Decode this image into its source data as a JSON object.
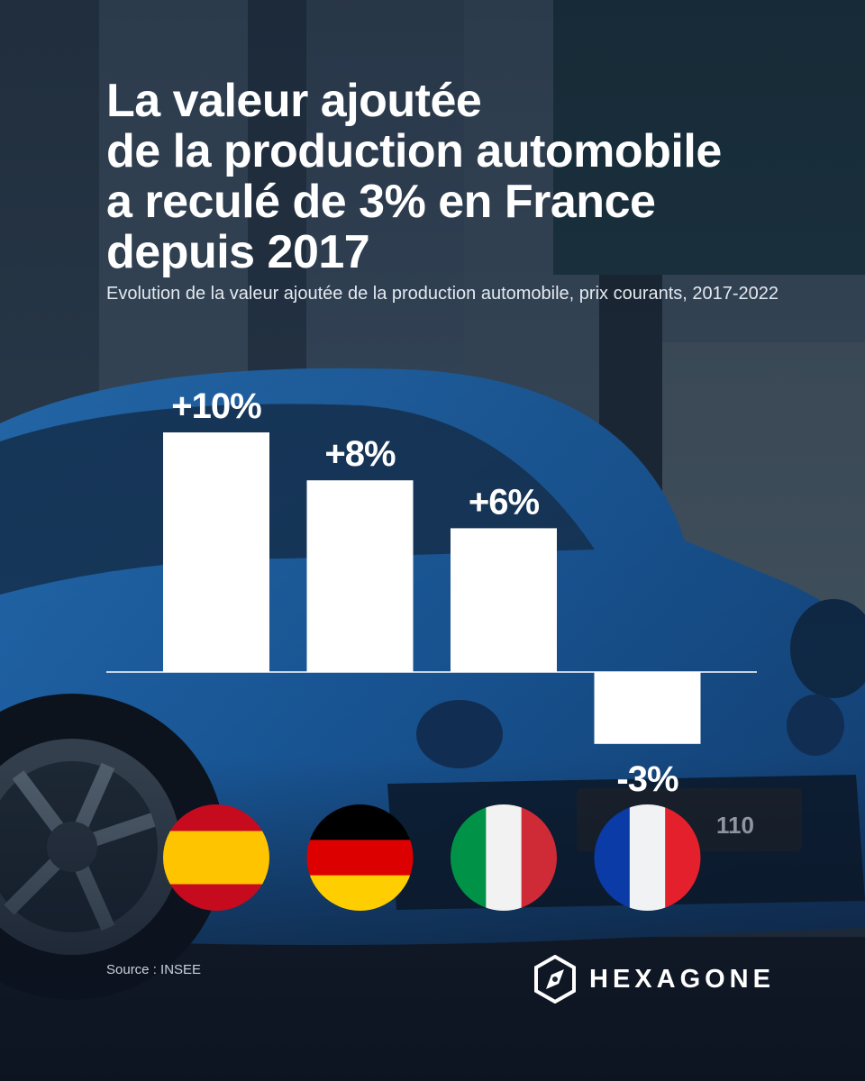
{
  "title_lines": [
    "La valeur ajoutée",
    "de la production automobile",
    "a reculé de 3% en France",
    "depuis 2017"
  ],
  "subtitle": "Evolution de la valeur ajoutée de la production automobile, prix courants, 2017-2022",
  "chart_data": {
    "type": "bar",
    "title": "La valeur ajoutée de la production automobile a reculé de 3% en France depuis 2017",
    "subtitle": "Evolution de la valeur ajoutée de la production automobile, prix courants, 2017-2022",
    "categories": [
      "Espagne",
      "Allemagne",
      "Italie",
      "France"
    ],
    "values": [
      10,
      8,
      6,
      -3
    ],
    "value_labels": [
      "+10%",
      "+8%",
      "+6%",
      "-3%"
    ],
    "unit": "%",
    "xlabel": "",
    "ylabel": "",
    "ylim": [
      -3,
      10
    ],
    "grid": false,
    "bar_color": "#ffffff",
    "axis_color": "#ffffff"
  },
  "flags": [
    {
      "country": "Espagne",
      "icon": "spain-flag-icon",
      "colors": [
        "#c60b1e",
        "#ffc400",
        "#c60b1e"
      ],
      "orientation": "horizontal"
    },
    {
      "country": "Allemagne",
      "icon": "germany-flag-icon",
      "colors": [
        "#000000",
        "#dd0000",
        "#ffce00"
      ],
      "orientation": "horizontal"
    },
    {
      "country": "Italie",
      "icon": "italy-flag-icon",
      "colors": [
        "#009246",
        "#f1f2f1",
        "#ce2b37"
      ],
      "orientation": "vertical"
    },
    {
      "country": "France",
      "icon": "france-flag-icon",
      "colors": [
        "#0a3ba6",
        "#f1f2f4",
        "#e4202c"
      ],
      "orientation": "vertical"
    }
  ],
  "source": "Source : INSEE",
  "brand": {
    "name": "HEXAGONE",
    "icon": "hexagone-logo-icon"
  },
  "colors": {
    "text": "#ffffff",
    "car": "#1a5fa6",
    "background_dark": "#0f1a2c"
  }
}
